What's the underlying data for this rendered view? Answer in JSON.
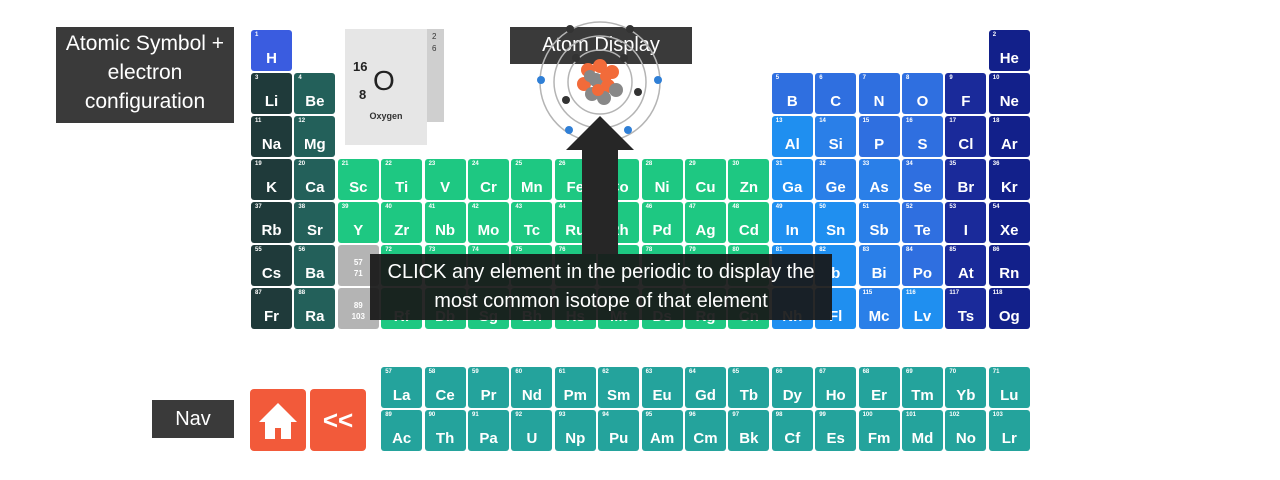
{
  "labels": {
    "symbol_config": "Atomic Symbol + electron configuration",
    "atom_display": "Atom Display",
    "nav": "Nav",
    "callout": "CLICK any element in the periodic to display the most common isotope of that element"
  },
  "tile": {
    "mass": "16",
    "atomic_number": "8",
    "symbol": "O",
    "name": "Oxygen",
    "shell1": "2",
    "shell2": "6"
  },
  "nav": {
    "home_icon": "house-icon",
    "back_label": "<<"
  },
  "colors": {
    "dark": "#1f3a3a",
    "teal": "#23605a",
    "green": "#1ec882",
    "lanthanide": "#24a39c",
    "blue": "#2f6fe0",
    "navy": "#1a2a9a",
    "placeholder": "#b4b4b4",
    "nav_button": "#f25a3a",
    "label_box": "#3a3a3a"
  },
  "elements": [
    {
      "n": "1",
      "s": "H",
      "r": 0,
      "c": 0,
      "k": "hblue"
    },
    {
      "n": "2",
      "s": "He",
      "r": 0,
      "c": 17,
      "k": "navy2"
    },
    {
      "n": "3",
      "s": "Li",
      "r": 1,
      "c": 0,
      "k": "dark"
    },
    {
      "n": "4",
      "s": "Be",
      "r": 1,
      "c": 1,
      "k": "teal"
    },
    {
      "n": "5",
      "s": "B",
      "r": 1,
      "c": 12,
      "k": "blue1"
    },
    {
      "n": "6",
      "s": "C",
      "r": 1,
      "c": 13,
      "k": "blue1"
    },
    {
      "n": "7",
      "s": "N",
      "r": 1,
      "c": 14,
      "k": "blue1"
    },
    {
      "n": "8",
      "s": "O",
      "r": 1,
      "c": 15,
      "k": "blue1"
    },
    {
      "n": "9",
      "s": "F",
      "r": 1,
      "c": 16,
      "k": "navy"
    },
    {
      "n": "10",
      "s": "Ne",
      "r": 1,
      "c": 17,
      "k": "navy2"
    },
    {
      "n": "11",
      "s": "Na",
      "r": 2,
      "c": 0,
      "k": "dark"
    },
    {
      "n": "12",
      "s": "Mg",
      "r": 2,
      "c": 1,
      "k": "teal"
    },
    {
      "n": "13",
      "s": "Al",
      "r": 2,
      "c": 12,
      "k": "blue2"
    },
    {
      "n": "14",
      "s": "Si",
      "r": 2,
      "c": 13,
      "k": "blue3"
    },
    {
      "n": "15",
      "s": "P",
      "r": 2,
      "c": 14,
      "k": "blue1"
    },
    {
      "n": "16",
      "s": "S",
      "r": 2,
      "c": 15,
      "k": "blue1"
    },
    {
      "n": "17",
      "s": "Cl",
      "r": 2,
      "c": 16,
      "k": "navy"
    },
    {
      "n": "18",
      "s": "Ar",
      "r": 2,
      "c": 17,
      "k": "navy2"
    },
    {
      "n": "19",
      "s": "K",
      "r": 3,
      "c": 0,
      "k": "dark"
    },
    {
      "n": "20",
      "s": "Ca",
      "r": 3,
      "c": 1,
      "k": "teal"
    },
    {
      "n": "21",
      "s": "Sc",
      "r": 3,
      "c": 2,
      "k": "green"
    },
    {
      "n": "22",
      "s": "Ti",
      "r": 3,
      "c": 3,
      "k": "green"
    },
    {
      "n": "23",
      "s": "V",
      "r": 3,
      "c": 4,
      "k": "green"
    },
    {
      "n": "24",
      "s": "Cr",
      "r": 3,
      "c": 5,
      "k": "green"
    },
    {
      "n": "25",
      "s": "Mn",
      "r": 3,
      "c": 6,
      "k": "green"
    },
    {
      "n": "26",
      "s": "Fe",
      "r": 3,
      "c": 7,
      "k": "green"
    },
    {
      "n": "27",
      "s": "Co",
      "r": 3,
      "c": 8,
      "k": "green"
    },
    {
      "n": "28",
      "s": "Ni",
      "r": 3,
      "c": 9,
      "k": "green"
    },
    {
      "n": "29",
      "s": "Cu",
      "r": 3,
      "c": 10,
      "k": "green"
    },
    {
      "n": "30",
      "s": "Zn",
      "r": 3,
      "c": 11,
      "k": "green"
    },
    {
      "n": "31",
      "s": "Ga",
      "r": 3,
      "c": 12,
      "k": "blue2"
    },
    {
      "n": "32",
      "s": "Ge",
      "r": 3,
      "c": 13,
      "k": "blue3"
    },
    {
      "n": "33",
      "s": "As",
      "r": 3,
      "c": 14,
      "k": "blue3"
    },
    {
      "n": "34",
      "s": "Se",
      "r": 3,
      "c": 15,
      "k": "blue1"
    },
    {
      "n": "35",
      "s": "Br",
      "r": 3,
      "c": 16,
      "k": "navy"
    },
    {
      "n": "36",
      "s": "Kr",
      "r": 3,
      "c": 17,
      "k": "navy2"
    },
    {
      "n": "37",
      "s": "Rb",
      "r": 4,
      "c": 0,
      "k": "dark"
    },
    {
      "n": "38",
      "s": "Sr",
      "r": 4,
      "c": 1,
      "k": "teal"
    },
    {
      "n": "39",
      "s": "Y",
      "r": 4,
      "c": 2,
      "k": "green"
    },
    {
      "n": "40",
      "s": "Zr",
      "r": 4,
      "c": 3,
      "k": "green"
    },
    {
      "n": "41",
      "s": "Nb",
      "r": 4,
      "c": 4,
      "k": "green"
    },
    {
      "n": "42",
      "s": "Mo",
      "r": 4,
      "c": 5,
      "k": "green"
    },
    {
      "n": "43",
      "s": "Tc",
      "r": 4,
      "c": 6,
      "k": "green"
    },
    {
      "n": "44",
      "s": "Ru",
      "r": 4,
      "c": 7,
      "k": "green"
    },
    {
      "n": "45",
      "s": "Rh",
      "r": 4,
      "c": 8,
      "k": "green"
    },
    {
      "n": "46",
      "s": "Pd",
      "r": 4,
      "c": 9,
      "k": "green"
    },
    {
      "n": "47",
      "s": "Ag",
      "r": 4,
      "c": 10,
      "k": "green"
    },
    {
      "n": "48",
      "s": "Cd",
      "r": 4,
      "c": 11,
      "k": "green"
    },
    {
      "n": "49",
      "s": "In",
      "r": 4,
      "c": 12,
      "k": "blue2"
    },
    {
      "n": "50",
      "s": "Sn",
      "r": 4,
      "c": 13,
      "k": "blue2"
    },
    {
      "n": "51",
      "s": "Sb",
      "r": 4,
      "c": 14,
      "k": "blue3"
    },
    {
      "n": "52",
      "s": "Te",
      "r": 4,
      "c": 15,
      "k": "blue1"
    },
    {
      "n": "53",
      "s": "I",
      "r": 4,
      "c": 16,
      "k": "navy"
    },
    {
      "n": "54",
      "s": "Xe",
      "r": 4,
      "c": 17,
      "k": "navy2"
    },
    {
      "n": "55",
      "s": "Cs",
      "r": 5,
      "c": 0,
      "k": "dark"
    },
    {
      "n": "56",
      "s": "Ba",
      "r": 5,
      "c": 1,
      "k": "teal"
    },
    {
      "n": "57 71",
      "s": "",
      "r": 5,
      "c": 2,
      "k": "gray",
      "ph": true
    },
    {
      "n": "72",
      "s": "",
      "r": 5,
      "c": 3,
      "k": "green"
    },
    {
      "n": "73",
      "s": "",
      "r": 5,
      "c": 4,
      "k": "green"
    },
    {
      "n": "74",
      "s": "",
      "r": 5,
      "c": 5,
      "k": "green"
    },
    {
      "n": "75",
      "s": "",
      "r": 5,
      "c": 6,
      "k": "green"
    },
    {
      "n": "76",
      "s": "",
      "r": 5,
      "c": 7,
      "k": "green"
    },
    {
      "n": "77",
      "s": "",
      "r": 5,
      "c": 8,
      "k": "green"
    },
    {
      "n": "78",
      "s": "",
      "r": 5,
      "c": 9,
      "k": "green"
    },
    {
      "n": "79",
      "s": "",
      "r": 5,
      "c": 10,
      "k": "green"
    },
    {
      "n": "80",
      "s": "",
      "r": 5,
      "c": 11,
      "k": "green"
    },
    {
      "n": "81",
      "s": "",
      "r": 5,
      "c": 12,
      "k": "blue2"
    },
    {
      "n": "82",
      "s": "b",
      "r": 5,
      "c": 13,
      "k": "blue2"
    },
    {
      "n": "83",
      "s": "Bi",
      "r": 5,
      "c": 14,
      "k": "blue3"
    },
    {
      "n": "84",
      "s": "Po",
      "r": 5,
      "c": 15,
      "k": "blue1"
    },
    {
      "n": "85",
      "s": "At",
      "r": 5,
      "c": 16,
      "k": "navy"
    },
    {
      "n": "86",
      "s": "Rn",
      "r": 5,
      "c": 17,
      "k": "navy2"
    },
    {
      "n": "87",
      "s": "Fr",
      "r": 6,
      "c": 0,
      "k": "dark"
    },
    {
      "n": "88",
      "s": "Ra",
      "r": 6,
      "c": 1,
      "k": "teal"
    },
    {
      "n": "89 103",
      "s": "",
      "r": 6,
      "c": 2,
      "k": "gray",
      "ph": true
    },
    {
      "n": "",
      "s": "Rf",
      "r": 6,
      "c": 3,
      "k": "green"
    },
    {
      "n": "",
      "s": "Db",
      "r": 6,
      "c": 4,
      "k": "green"
    },
    {
      "n": "",
      "s": "Sg",
      "r": 6,
      "c": 5,
      "k": "green"
    },
    {
      "n": "",
      "s": "Bh",
      "r": 6,
      "c": 6,
      "k": "green"
    },
    {
      "n": "",
      "s": "Hs",
      "r": 6,
      "c": 7,
      "k": "green"
    },
    {
      "n": "",
      "s": "Mt",
      "r": 6,
      "c": 8,
      "k": "green"
    },
    {
      "n": "",
      "s": "Ds",
      "r": 6,
      "c": 9,
      "k": "green"
    },
    {
      "n": "",
      "s": "Rg",
      "r": 6,
      "c": 10,
      "k": "green"
    },
    {
      "n": "",
      "s": "Cn",
      "r": 6,
      "c": 11,
      "k": "green"
    },
    {
      "n": "",
      "s": "Nh",
      "r": 6,
      "c": 12,
      "k": "blue2"
    },
    {
      "n": "",
      "s": "Fl",
      "r": 6,
      "c": 13,
      "k": "blue2"
    },
    {
      "n": "115",
      "s": "Mc",
      "r": 6,
      "c": 14,
      "k": "blue3"
    },
    {
      "n": "116",
      "s": "Lv",
      "r": 6,
      "c": 15,
      "k": "blue2"
    },
    {
      "n": "117",
      "s": "Ts",
      "r": 6,
      "c": 16,
      "k": "navy"
    },
    {
      "n": "118",
      "s": "Og",
      "r": 6,
      "c": 17,
      "k": "navy2"
    },
    {
      "n": "57",
      "s": "La",
      "r": 7,
      "c": 3,
      "k": "lan"
    },
    {
      "n": "58",
      "s": "Ce",
      "r": 7,
      "c": 4,
      "k": "lan"
    },
    {
      "n": "59",
      "s": "Pr",
      "r": 7,
      "c": 5,
      "k": "lan"
    },
    {
      "n": "60",
      "s": "Nd",
      "r": 7,
      "c": 6,
      "k": "lan"
    },
    {
      "n": "61",
      "s": "Pm",
      "r": 7,
      "c": 7,
      "k": "lan"
    },
    {
      "n": "62",
      "s": "Sm",
      "r": 7,
      "c": 8,
      "k": "lan"
    },
    {
      "n": "63",
      "s": "Eu",
      "r": 7,
      "c": 9,
      "k": "lan"
    },
    {
      "n": "64",
      "s": "Gd",
      "r": 7,
      "c": 10,
      "k": "lan"
    },
    {
      "n": "65",
      "s": "Tb",
      "r": 7,
      "c": 11,
      "k": "lan"
    },
    {
      "n": "66",
      "s": "Dy",
      "r": 7,
      "c": 12,
      "k": "lan"
    },
    {
      "n": "67",
      "s": "Ho",
      "r": 7,
      "c": 13,
      "k": "lan"
    },
    {
      "n": "68",
      "s": "Er",
      "r": 7,
      "c": 14,
      "k": "lan"
    },
    {
      "n": "69",
      "s": "Tm",
      "r": 7,
      "c": 15,
      "k": "lan"
    },
    {
      "n": "70",
      "s": "Yb",
      "r": 7,
      "c": 16,
      "k": "lan"
    },
    {
      "n": "71",
      "s": "Lu",
      "r": 7,
      "c": 17,
      "k": "lan"
    },
    {
      "n": "89",
      "s": "Ac",
      "r": 8,
      "c": 3,
      "k": "lan"
    },
    {
      "n": "90",
      "s": "Th",
      "r": 8,
      "c": 4,
      "k": "lan"
    },
    {
      "n": "91",
      "s": "Pa",
      "r": 8,
      "c": 5,
      "k": "lan"
    },
    {
      "n": "92",
      "s": "U",
      "r": 8,
      "c": 6,
      "k": "lan"
    },
    {
      "n": "93",
      "s": "Np",
      "r": 8,
      "c": 7,
      "k": "lan"
    },
    {
      "n": "94",
      "s": "Pu",
      "r": 8,
      "c": 8,
      "k": "lan"
    },
    {
      "n": "95",
      "s": "Am",
      "r": 8,
      "c": 9,
      "k": "lan"
    },
    {
      "n": "96",
      "s": "Cm",
      "r": 8,
      "c": 10,
      "k": "lan"
    },
    {
      "n": "97",
      "s": "Bk",
      "r": 8,
      "c": 11,
      "k": "lan"
    },
    {
      "n": "98",
      "s": "Cf",
      "r": 8,
      "c": 12,
      "k": "lan"
    },
    {
      "n": "99",
      "s": "Es",
      "r": 8,
      "c": 13,
      "k": "lan"
    },
    {
      "n": "100",
      "s": "Fm",
      "r": 8,
      "c": 14,
      "k": "lan"
    },
    {
      "n": "101",
      "s": "Md",
      "r": 8,
      "c": 15,
      "k": "lan"
    },
    {
      "n": "102",
      "s": "No",
      "r": 8,
      "c": 16,
      "k": "lan"
    },
    {
      "n": "103",
      "s": "Lr",
      "r": 8,
      "c": 17,
      "k": "lan"
    }
  ]
}
